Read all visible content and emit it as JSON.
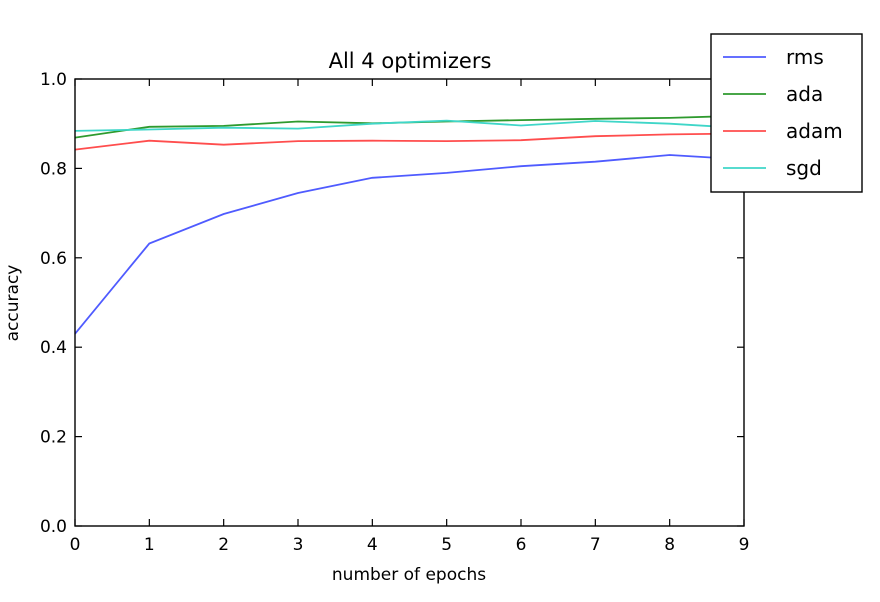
{
  "chart_data": {
    "type": "line",
    "title": "All 4 optimizers",
    "xlabel": "number of epochs",
    "ylabel": "accuracy",
    "xlim": [
      0,
      9
    ],
    "ylim": [
      0.0,
      1.0
    ],
    "xticks": [
      "0",
      "1",
      "2",
      "3",
      "4",
      "5",
      "6",
      "7",
      "8",
      "9"
    ],
    "yticks": [
      "0.0",
      "0.2",
      "0.4",
      "0.6",
      "0.8",
      "1.0"
    ],
    "grid": false,
    "legend_position": "top-right",
    "x": [
      0,
      1,
      2,
      3,
      4,
      5,
      6,
      7,
      8,
      9
    ],
    "series": [
      {
        "name": "rms",
        "color": "#4f5bff",
        "values": [
          0.43,
          0.632,
          0.698,
          0.745,
          0.779,
          0.79,
          0.805,
          0.815,
          0.83,
          0.82
        ]
      },
      {
        "name": "ada",
        "color": "#2e9a2e",
        "values": [
          0.869,
          0.893,
          0.895,
          0.905,
          0.901,
          0.905,
          0.908,
          0.911,
          0.913,
          0.918
        ]
      },
      {
        "name": "adam",
        "color": "#ff4d4d",
        "values": [
          0.842,
          0.862,
          0.853,
          0.861,
          0.862,
          0.861,
          0.863,
          0.872,
          0.876,
          0.878
        ]
      },
      {
        "name": "sgd",
        "color": "#3fd6c8",
        "values": [
          0.884,
          0.887,
          0.891,
          0.889,
          0.9,
          0.907,
          0.896,
          0.906,
          0.9,
          0.89
        ]
      }
    ]
  }
}
